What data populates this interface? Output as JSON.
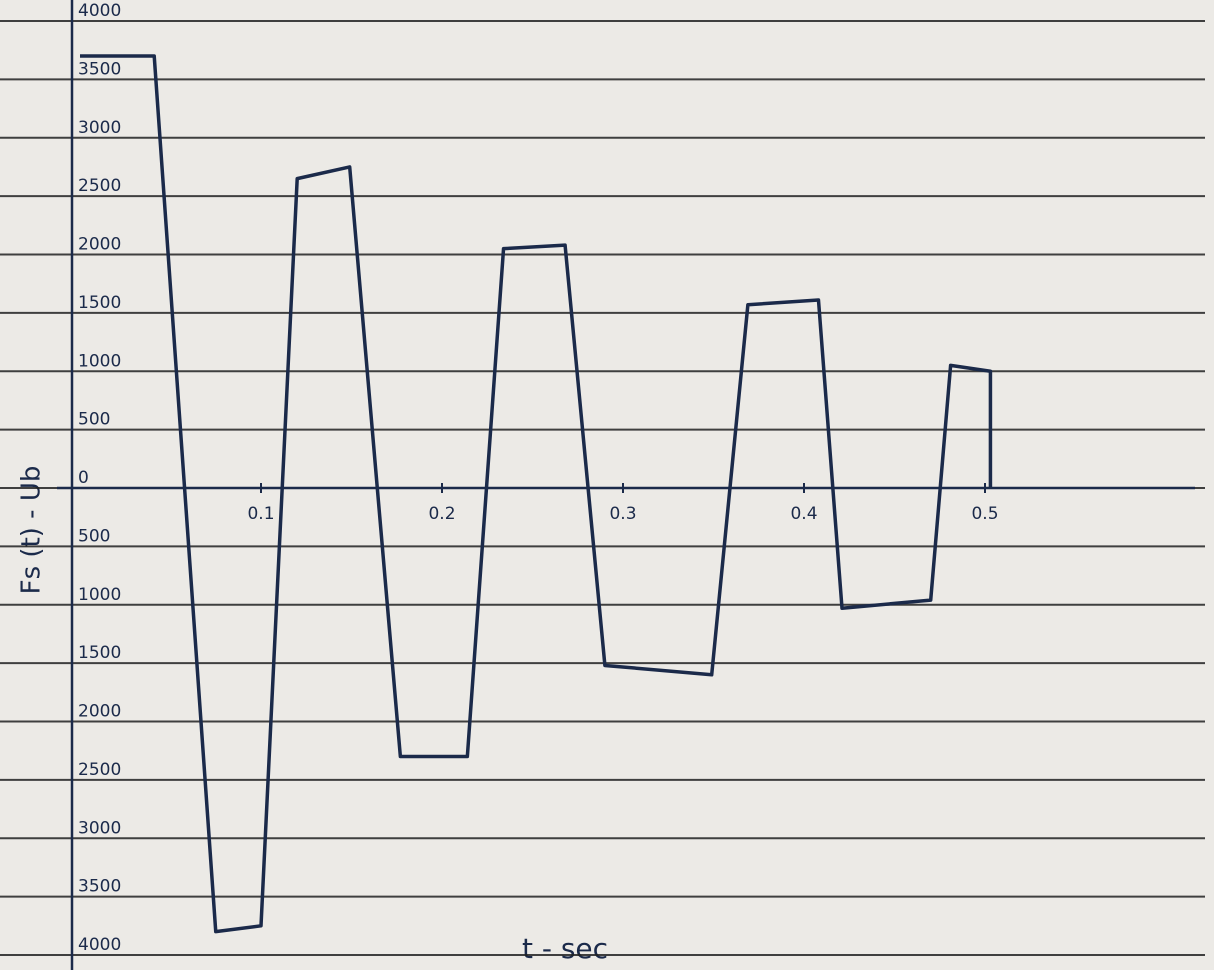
{
  "chart_data": {
    "type": "line",
    "x_label": "t - sec",
    "y_label": "Fs (t) - Ub",
    "x": [
      0,
      0.041,
      0.075,
      0.1,
      0.12,
      0.149,
      0.177,
      0.214,
      0.234,
      0.268,
      0.29,
      0.349,
      0.369,
      0.408,
      0.421,
      0.47,
      0.481,
      0.503,
      0.503
    ],
    "series": [
      {
        "color": "#1b2a4a",
        "values": [
          3700,
          3700,
          -3800,
          -3750,
          2650,
          2750,
          -2300,
          -2300,
          2050,
          2080,
          -1520,
          -1600,
          1570,
          1610,
          -1030,
          -960,
          1050,
          1000,
          0
        ]
      }
    ],
    "xlim": [
      0,
      0.6
    ],
    "xticks": [
      0.1,
      0.2,
      0.3,
      0.4,
      0.5
    ],
    "ylim": [
      -4000,
      4000
    ],
    "yticks": [
      4000,
      3500,
      3000,
      2500,
      2000,
      1500,
      1000,
      500,
      0,
      {
        "value": -500,
        "label": "500"
      },
      {
        "value": -1000,
        "label": "1000"
      },
      {
        "value": -1500,
        "label": "1500"
      },
      {
        "value": -2000,
        "label": "2000"
      },
      {
        "value": -2500,
        "label": "2500"
      },
      {
        "value": -3000,
        "label": "3000"
      },
      {
        "value": -3500,
        "label": "3500"
      },
      {
        "value": -4000,
        "label": "4000"
      }
    ],
    "grid": true
  }
}
